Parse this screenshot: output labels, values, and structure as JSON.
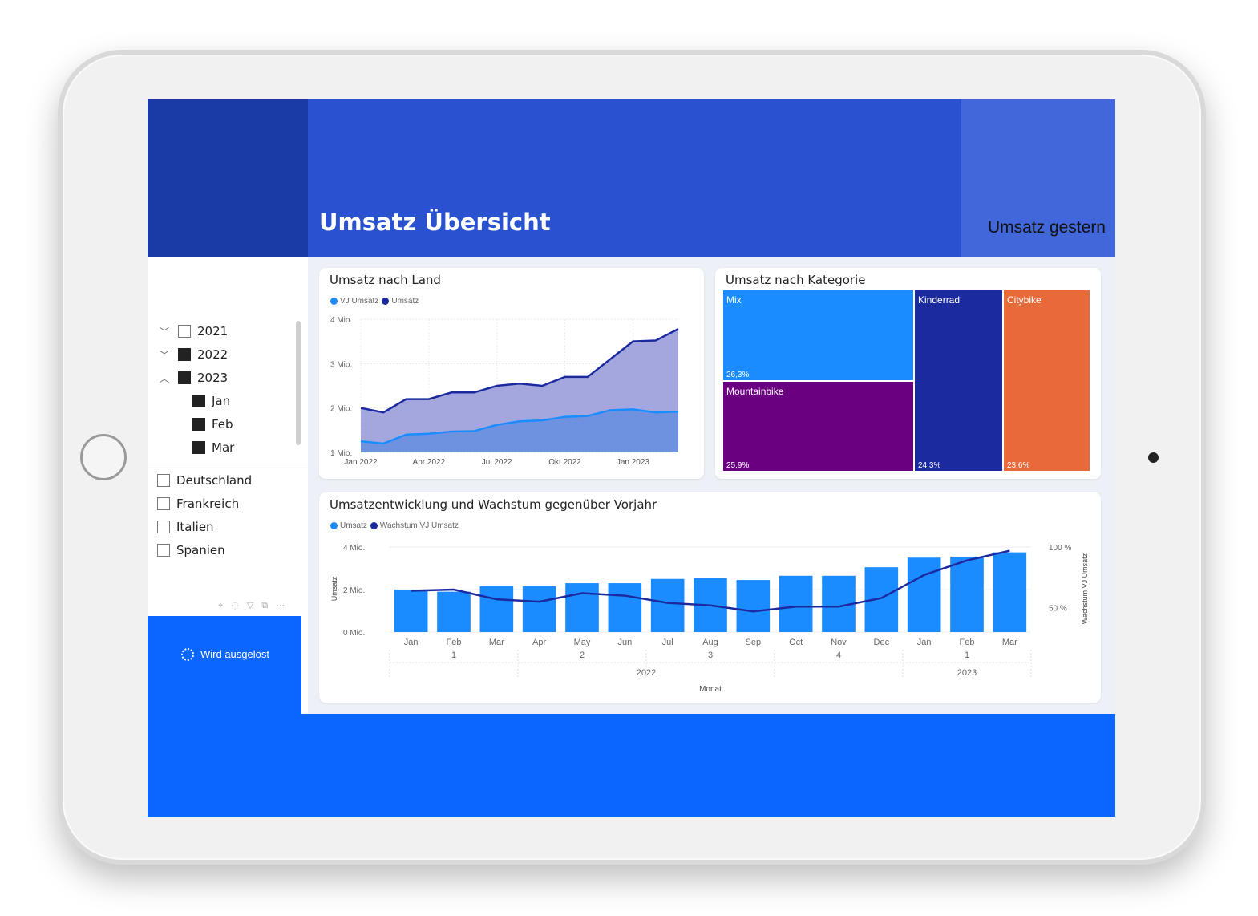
{
  "header": {
    "title": "Umsatz Übersicht",
    "kpi_label": "Umsatz gestern"
  },
  "colors": {
    "header_dark": "#1a3aa6",
    "header_main": "#2a51cf",
    "header_right": "#4267db",
    "accent_blue": "#0a66ff",
    "series_light": "#1a8cff",
    "series_dark": "#1c2aa0",
    "purple": "#6a0080",
    "orange": "#e8693a"
  },
  "sidebar": {
    "date_slicer": [
      {
        "label": "2021",
        "expand": "chevron-down-icon",
        "checked": false,
        "indent": 0
      },
      {
        "label": "2022",
        "expand": "chevron-down-icon",
        "checked": true,
        "indent": 0
      },
      {
        "label": "2023",
        "expand": "chevron-up-icon",
        "checked": true,
        "indent": 0
      },
      {
        "label": "Jan",
        "checked": true,
        "indent": 1
      },
      {
        "label": "Feb",
        "checked": true,
        "indent": 1
      },
      {
        "label": "Mar",
        "checked": true,
        "indent": 1
      }
    ],
    "country_slicer": [
      {
        "label": "Deutschland",
        "checked": false
      },
      {
        "label": "Frankreich",
        "checked": false
      },
      {
        "label": "Italien",
        "checked": false
      },
      {
        "label": "Spanien",
        "checked": false
      }
    ],
    "visual_tools": [
      "pin-icon",
      "copy-icon",
      "filter-icon",
      "focus-icon",
      "more-icon"
    ],
    "trigger_button": {
      "label": "Wird ausgelöst",
      "icon": "spinner-icon"
    }
  },
  "chart_data": [
    {
      "id": "umsatz_nach_land",
      "type": "area",
      "title": "Umsatz nach Land",
      "legend": [
        "VJ Umsatz",
        "Umsatz"
      ],
      "x_tick_labels": [
        "Jan 2022",
        "Apr 2022",
        "Jul 2022",
        "Okt 2022",
        "Jan 2023"
      ],
      "y_tick_labels": [
        "1 Mio.",
        "2 Mio.",
        "3 Mio.",
        "4 Mio."
      ],
      "ylim": [
        1,
        4
      ],
      "grid": true,
      "x": [
        "2022-01",
        "2022-02",
        "2022-03",
        "2022-04",
        "2022-05",
        "2022-06",
        "2022-07",
        "2022-08",
        "2022-09",
        "2022-10",
        "2022-11",
        "2022-12",
        "2023-01",
        "2023-02",
        "2023-03"
      ],
      "series": [
        {
          "name": "Umsatz",
          "color": "#1c2aa0",
          "values": [
            2.0,
            1.9,
            2.2,
            2.2,
            2.35,
            2.35,
            2.5,
            2.55,
            2.5,
            2.7,
            2.7,
            3.1,
            3.5,
            3.52,
            3.78
          ]
        },
        {
          "name": "VJ Umsatz",
          "color": "#1a8cff",
          "values": [
            1.25,
            1.2,
            1.4,
            1.42,
            1.47,
            1.48,
            1.62,
            1.7,
            1.72,
            1.8,
            1.82,
            1.95,
            1.97,
            1.9,
            1.92
          ]
        }
      ]
    },
    {
      "id": "umsatz_nach_kategorie",
      "type": "treemap",
      "title": "Umsatz nach Kategorie",
      "items": [
        {
          "label": "Mix",
          "percent": "26,3%",
          "value": 26.3,
          "color": "#1a8cff"
        },
        {
          "label": "Mountainbike",
          "percent": "25,9%",
          "value": 25.9,
          "color": "#6a0080"
        },
        {
          "label": "Kinderrad",
          "percent": "24,3%",
          "value": 24.3,
          "color": "#1c2aa0"
        },
        {
          "label": "Citybike",
          "percent": "23,6%",
          "value": 23.6,
          "color": "#e8693a"
        }
      ]
    },
    {
      "id": "umsatzentwicklung",
      "type": "bar",
      "title": "Umsatzentwicklung und Wachstum gegenüber Vorjahr",
      "legend": [
        "Umsatz",
        "Wachstum VJ Umsatz"
      ],
      "categories": [
        "Jan",
        "Feb",
        "Mar",
        "Apr",
        "May",
        "Jun",
        "Jul",
        "Aug",
        "Sep",
        "Oct",
        "Nov",
        "Dec",
        "Jan",
        "Feb",
        "Mar"
      ],
      "quarter_labels": [
        "",
        "1",
        "",
        "",
        "2",
        "",
        "",
        "3",
        "",
        "",
        "4",
        "",
        "",
        "1",
        ""
      ],
      "year_labels": [
        "2022",
        "2023"
      ],
      "xlabel": "Monat",
      "ylabel": "Umsatz",
      "y2label": "Wachstum VJ Umsatz",
      "y_tick_labels": [
        "0 Mio.",
        "2 Mio.",
        "4 Mio."
      ],
      "y2_tick_labels": [
        "50 %",
        "100 %"
      ],
      "ylim": [
        0,
        4
      ],
      "y2lim": [
        30,
        100
      ],
      "bars": {
        "name": "Umsatz",
        "color": "#1a8cff",
        "values": [
          2.0,
          1.9,
          2.15,
          2.15,
          2.3,
          2.3,
          2.5,
          2.55,
          2.45,
          2.65,
          2.65,
          3.05,
          3.5,
          3.55,
          3.75
        ]
      },
      "line": {
        "name": "Wachstum VJ Umsatz",
        "color": "#1c2aa0",
        "values": [
          64,
          65,
          57,
          55,
          62,
          60,
          54,
          52,
          47,
          51,
          51,
          58,
          77,
          89,
          97
        ]
      }
    }
  ]
}
